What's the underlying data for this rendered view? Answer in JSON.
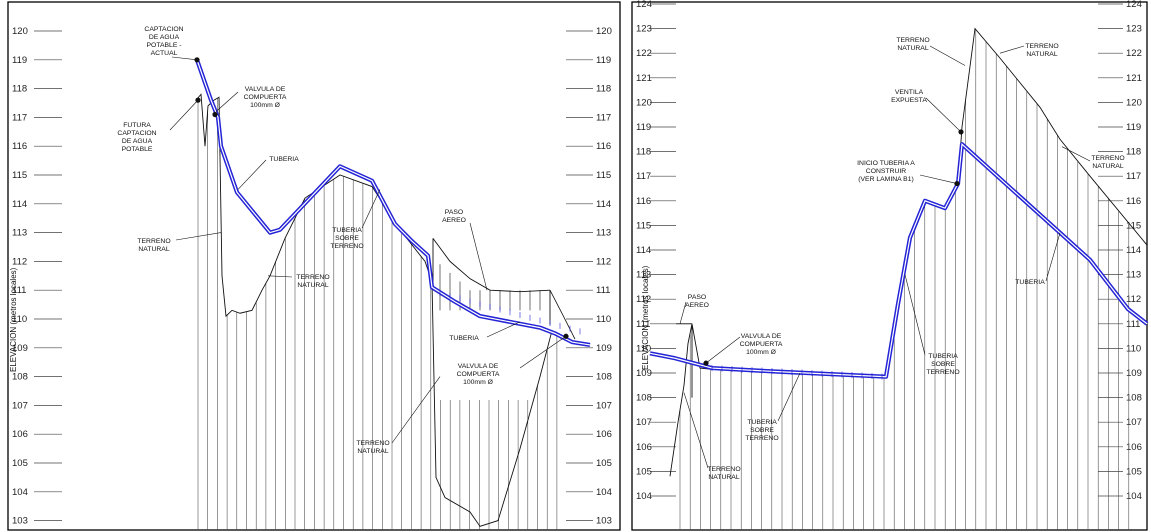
{
  "colors": {
    "pipe": "#2424d6",
    "ink": "#111111",
    "grid": "#444444",
    "frame": "#000000"
  },
  "panels": [
    {
      "id": "left",
      "y_axis_label": "ELEVACION (metros locales)",
      "y_ticks": [
        "120",
        "119",
        "118",
        "117",
        "116",
        "115",
        "114",
        "113",
        "112",
        "111",
        "110",
        "109",
        "108",
        "107",
        "106",
        "105",
        "104",
        "103"
      ],
      "annotations": [
        {
          "id": "captacion-actual",
          "lines": [
            "CAPTACION",
            "DE AGUA",
            "POTABLE -",
            "ACTUAL"
          ]
        },
        {
          "id": "futura-captacion",
          "lines": [
            "FUTURA",
            "CAPTACION",
            "DE AGUA",
            "POTABLE"
          ]
        },
        {
          "id": "valvula-1",
          "lines": [
            "VALVULA DE",
            "COMPUERTA",
            "100mm Ø"
          ]
        },
        {
          "id": "tuberia-1",
          "lines": [
            "TUBERIA"
          ]
        },
        {
          "id": "terreno-1",
          "lines": [
            "TERRENO",
            "NATURAL"
          ]
        },
        {
          "id": "terreno-2",
          "lines": [
            "TERRENO",
            "NATURAL"
          ]
        },
        {
          "id": "tuberia-sobre-1",
          "lines": [
            "TUBERIA",
            "SOBRE",
            "TERRENO"
          ]
        },
        {
          "id": "paso-aereo-1",
          "lines": [
            "PASO",
            "AEREO"
          ]
        },
        {
          "id": "tuberia-2",
          "lines": [
            "TUBERIA"
          ]
        },
        {
          "id": "valvula-2",
          "lines": [
            "VALVULA DE",
            "COMPUERTA",
            "100mm Ø"
          ]
        },
        {
          "id": "terreno-3",
          "lines": [
            "TERRENO",
            "NATURAL"
          ]
        }
      ]
    },
    {
      "id": "right",
      "y_axis_label": "ELEVACION (metros locales)",
      "y_ticks": [
        "124",
        "123",
        "122",
        "121",
        "120",
        "119",
        "118",
        "117",
        "116",
        "115",
        "114",
        "113",
        "112",
        "111",
        "110",
        "109",
        "108",
        "107",
        "106",
        "105",
        "104"
      ],
      "annotations": [
        {
          "id": "terreno-r1",
          "lines": [
            "TERRENO",
            "NATURAL"
          ]
        },
        {
          "id": "terreno-r2",
          "lines": [
            "TERRENO",
            "NATURAL"
          ]
        },
        {
          "id": "ventila",
          "lines": [
            "VENTILA",
            "EXPUESTA"
          ]
        },
        {
          "id": "terreno-r3",
          "lines": [
            "TERRENO",
            "NATURAL"
          ]
        },
        {
          "id": "inicio-tuberia",
          "lines": [
            "INICIO TUBERIA A",
            "CONSTRUIR",
            "(VER LAMINA B1)"
          ]
        },
        {
          "id": "tuberia-r1",
          "lines": [
            "TUBERIA"
          ]
        },
        {
          "id": "paso-aereo-r",
          "lines": [
            "PASO",
            "AEREO"
          ]
        },
        {
          "id": "valvula-r",
          "lines": [
            "VALVULA DE",
            "COMPUERTA",
            "100mm Ø"
          ]
        },
        {
          "id": "tuberia-sobre-r1",
          "lines": [
            "TUBERIA",
            "SOBRE",
            "TERRENO"
          ]
        },
        {
          "id": "tuberia-sobre-r2",
          "lines": [
            "TUBERIA",
            "SOBRE",
            "TERRENO"
          ]
        },
        {
          "id": "terreno-r4",
          "lines": [
            "TERRENO",
            "NATURAL"
          ]
        }
      ]
    }
  ]
}
